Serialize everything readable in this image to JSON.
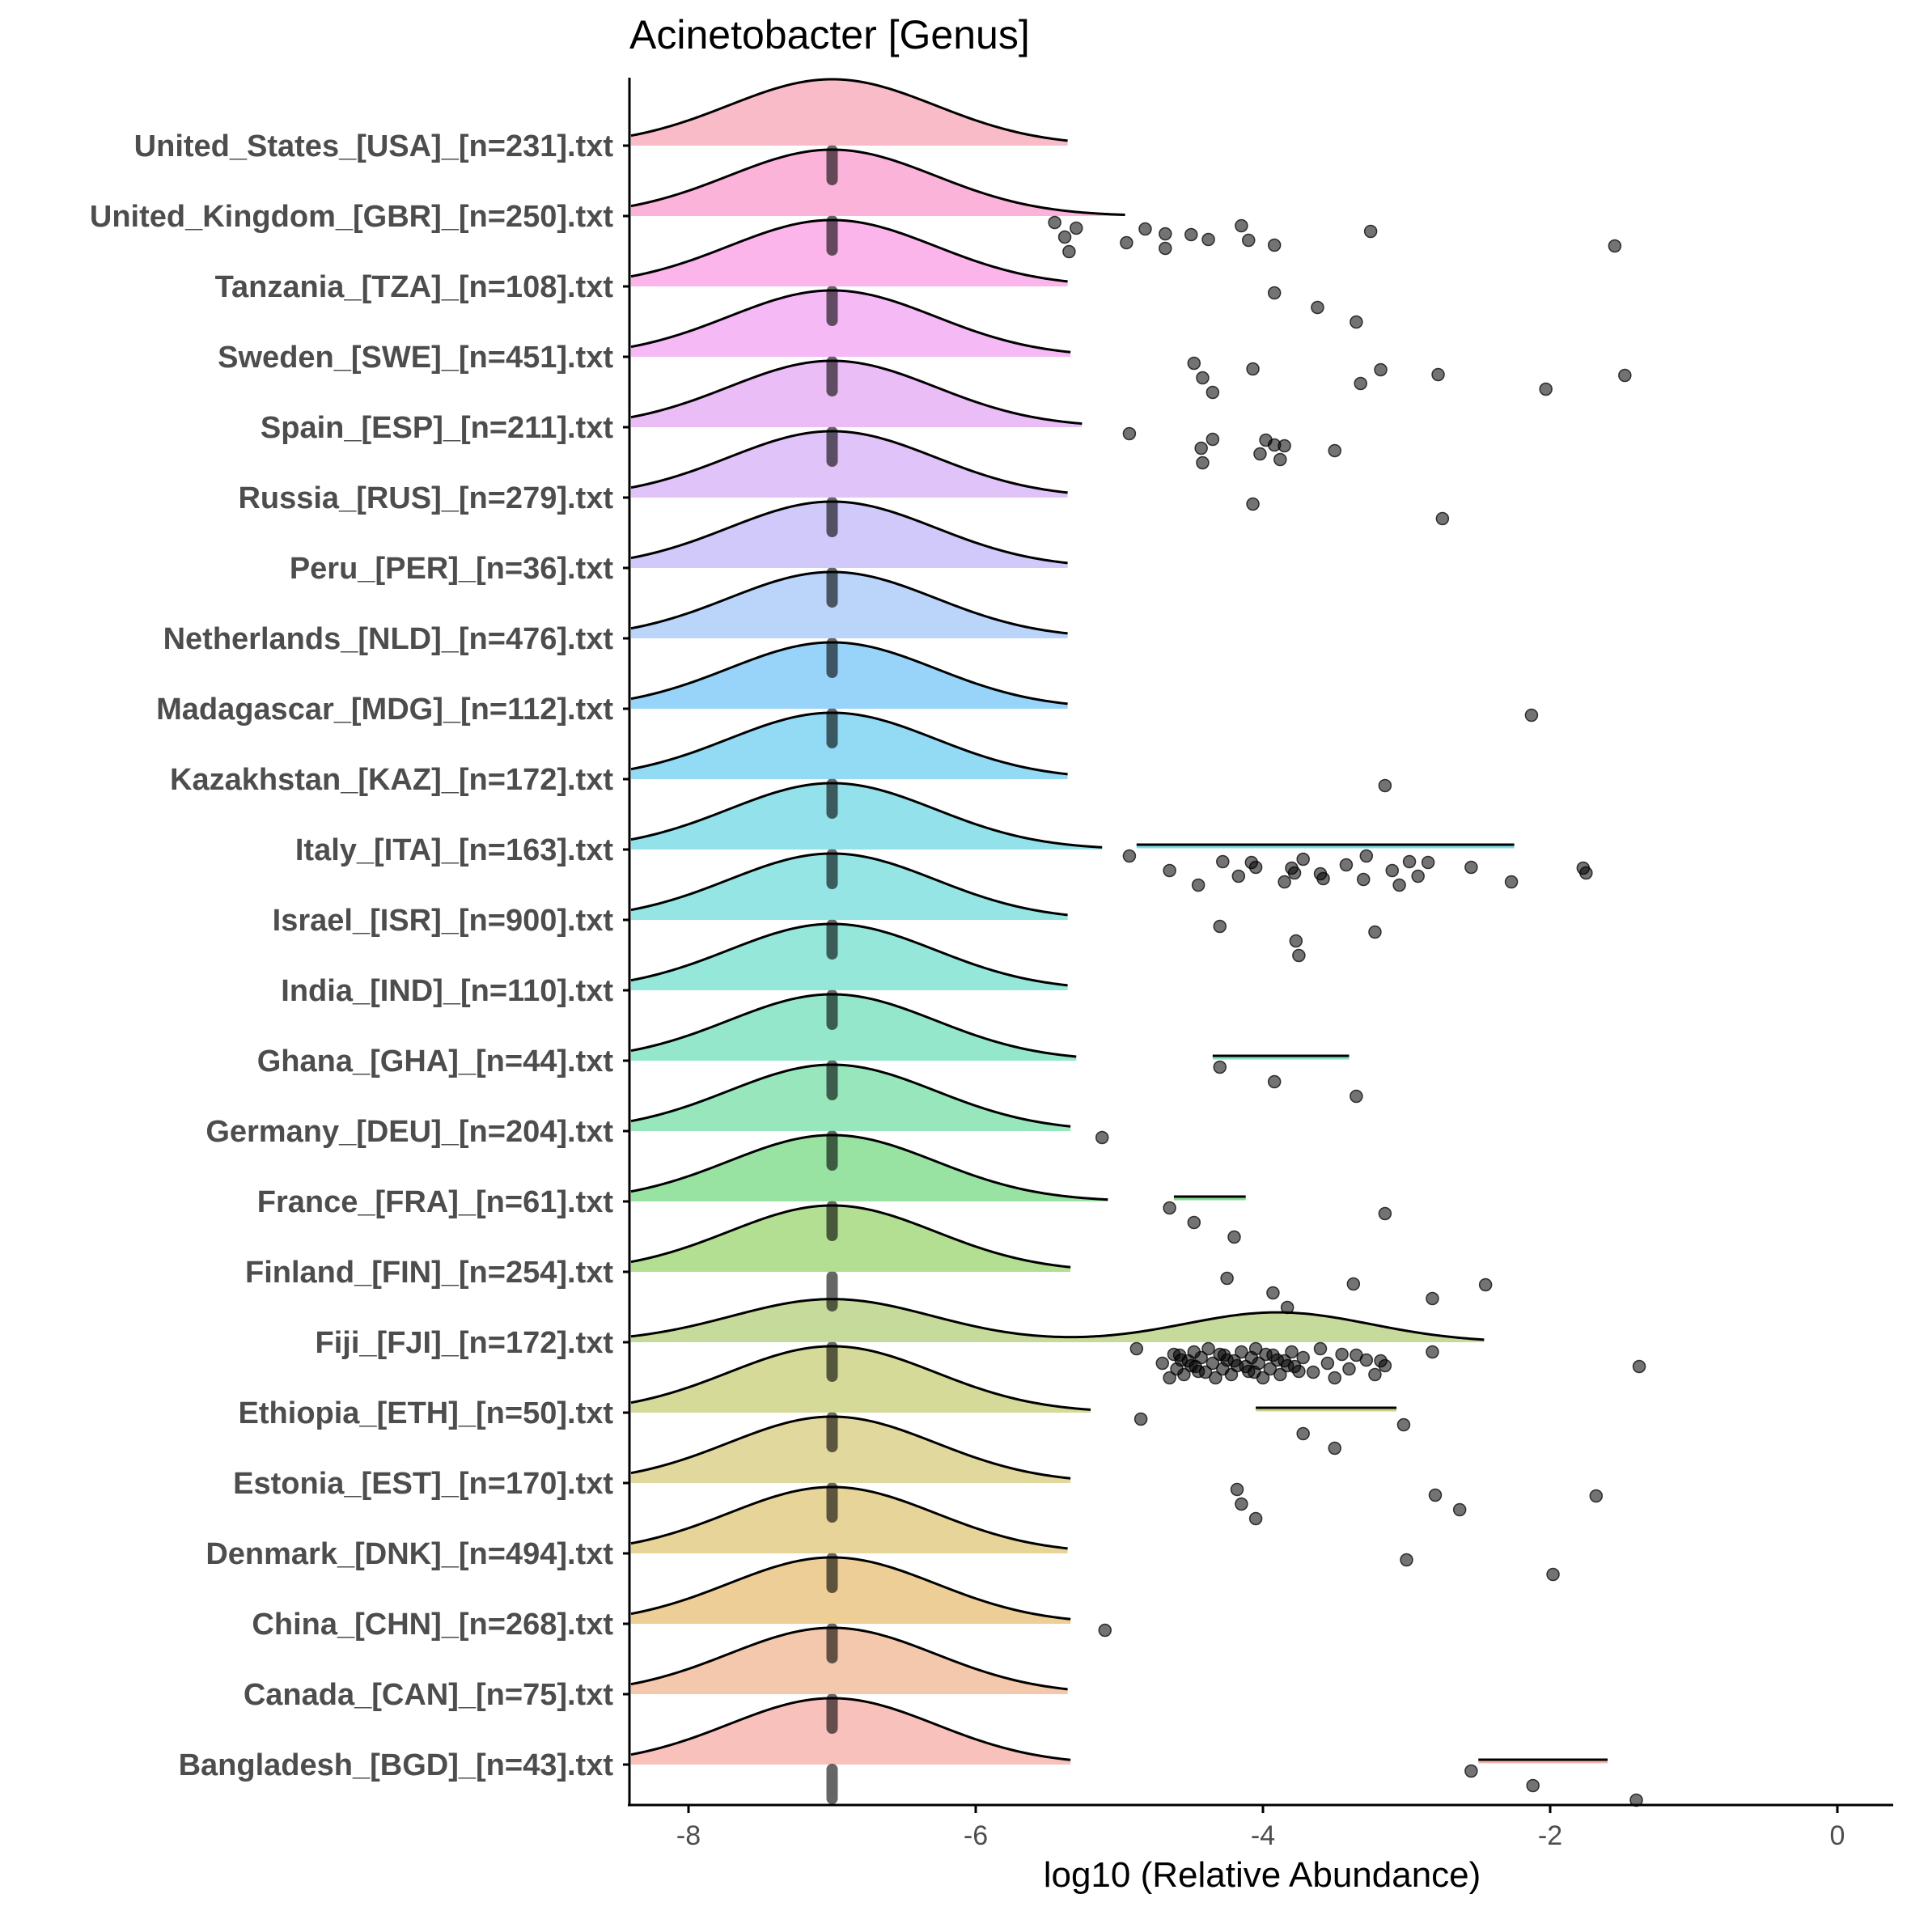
{
  "chart_data": {
    "type": "ridgeline",
    "title": "Acinetobacter [Genus]",
    "xlabel": "log10 (Relative Abundance)",
    "ylabel": "",
    "xlim": [
      -8.4,
      0.4
    ],
    "xticks": [
      -8,
      -6,
      -4,
      -2,
      0
    ],
    "xtick_labels": [
      "-8",
      "-6",
      "-4",
      "-2",
      "0"
    ],
    "grid": false,
    "legend": "none",
    "series": [
      {
        "name": "United_States_[USA]_[n=231].txt",
        "color": "#F8AFBE",
        "peak_x": -7.0,
        "median": null,
        "ridge_to": -5.35,
        "tail": null,
        "points": []
      },
      {
        "name": "United_Kingdom_[GBR]_[n=250].txt",
        "color": "#FBA6D4",
        "peak_x": -7.0,
        "median": -7.0,
        "ridge_to": -4.95,
        "tail": null,
        "points": [
          -5.45,
          -5.38,
          -5.35,
          -5.3,
          -4.95,
          -4.82,
          -4.68,
          -4.68,
          -4.5,
          -4.38,
          -4.15,
          -4.1,
          -3.92,
          -3.25,
          -1.55
        ]
      },
      {
        "name": "Tanzania_[TZA]_[n=108].txt",
        "color": "#FBA8E8",
        "peak_x": -7.0,
        "median": -7.0,
        "ridge_to": -5.35,
        "tail": null,
        "points": [
          -3.92,
          -3.62,
          -3.35
        ]
      },
      {
        "name": "Sweden_[SWE]_[n=451].txt",
        "color": "#F3ADF5",
        "peak_x": -7.0,
        "median": -7.0,
        "ridge_to": -5.33,
        "tail": null,
        "points": [
          -4.48,
          -4.42,
          -4.35,
          -4.07,
          -3.32,
          -3.18,
          -2.78,
          -2.03,
          -1.48
        ]
      },
      {
        "name": "Spain_[ESP]_[n=211].txt",
        "color": "#E7B1F6",
        "peak_x": -7.0,
        "median": -7.0,
        "ridge_to": -5.25,
        "tail": null,
        "points": [
          -4.93,
          -4.43,
          -4.42,
          -4.35,
          -4.02,
          -3.98,
          -3.92,
          -3.88,
          -3.85,
          -3.5
        ]
      },
      {
        "name": "Russia_[RUS]_[n=279].txt",
        "color": "#DAB8F8",
        "peak_x": -7.0,
        "median": -7.0,
        "ridge_to": -5.35,
        "tail": null,
        "points": [
          -4.07,
          -2.75
        ]
      },
      {
        "name": "Peru_[PER]_[n=36].txt",
        "color": "#C8C0F9",
        "peak_x": -7.0,
        "median": -7.0,
        "ridge_to": -5.35,
        "tail": null,
        "points": []
      },
      {
        "name": "Netherlands_[NLD]_[n=476].txt",
        "color": "#AECCF9",
        "peak_x": -7.0,
        "median": -7.0,
        "ridge_to": -5.35,
        "tail": null,
        "points": []
      },
      {
        "name": "Madagascar_[MDG]_[n=112].txt",
        "color": "#86CDF8",
        "peak_x": -7.0,
        "median": -7.0,
        "ridge_to": -5.35,
        "tail": null,
        "points": [
          -2.13
        ]
      },
      {
        "name": "Kazakhstan_[KAZ]_[n=172].txt",
        "color": "#80D5F2",
        "peak_x": -7.0,
        "median": -7.0,
        "ridge_to": -5.35,
        "tail": null,
        "points": [
          -3.15
        ]
      },
      {
        "name": "Italy_[ITA]_[n=163].txt",
        "color": "#80DDE8",
        "peak_x": -7.0,
        "median": -7.0,
        "ridge_to": -5.12,
        "tail": [
          -4.88,
          -2.25
        ],
        "points": [
          -4.93,
          -4.65,
          -4.45,
          -4.28,
          -4.17,
          -4.08,
          -4.05,
          -3.85,
          -3.8,
          -3.78,
          -3.72,
          -3.6,
          -3.58,
          -3.42,
          -3.3,
          -3.28,
          -3.1,
          -3.05,
          -2.98,
          -2.92,
          -2.85,
          -2.55,
          -2.27,
          -1.77,
          -1.75
        ]
      },
      {
        "name": "Israel_[ISR]_[n=900].txt",
        "color": "#82E1E0",
        "peak_x": -7.0,
        "median": -7.0,
        "ridge_to": -5.35,
        "tail": null,
        "points": [
          -4.3,
          -3.77,
          -3.75,
          -3.22
        ]
      },
      {
        "name": "India_[IND]_[n=110].txt",
        "color": "#82E3D2",
        "peak_x": -7.0,
        "median": -7.0,
        "ridge_to": -5.35,
        "tail": null,
        "points": []
      },
      {
        "name": "Ghana_[GHA]_[n=44].txt",
        "color": "#83E3C2",
        "peak_x": -7.0,
        "median": -7.0,
        "ridge_to": -5.3,
        "tail": [
          -4.35,
          -3.4
        ],
        "points": [
          -4.3,
          -3.92,
          -3.35
        ]
      },
      {
        "name": "Germany_[DEU]_[n=204].txt",
        "color": "#86E2B0",
        "peak_x": -7.0,
        "median": -7.0,
        "ridge_to": -5.33,
        "tail": null,
        "points": [
          -5.12
        ]
      },
      {
        "name": "France_[FRA]_[n=61].txt",
        "color": "#87DE92",
        "peak_x": -7.0,
        "median": -7.0,
        "ridge_to": -5.08,
        "tail": [
          -4.62,
          -4.12
        ],
        "points": [
          -4.65,
          -4.48,
          -4.2,
          -3.15
        ]
      },
      {
        "name": "Finland_[FIN]_[n=254].txt",
        "color": "#A4D97E",
        "peak_x": -7.0,
        "median": -7.0,
        "ridge_to": -5.33,
        "tail": null,
        "points": [
          -4.25,
          -3.93,
          -3.83,
          -3.37,
          -2.82,
          -2.45
        ]
      },
      {
        "name": "Fiji_[FJI]_[n=172].txt",
        "color": "#BCD58A",
        "peak_x": -7.0,
        "median": -7.0,
        "ridge_to": -2.45,
        "tail": null,
        "points": [
          -4.88,
          -4.7,
          -4.65,
          -4.62,
          -4.6,
          -4.58,
          -4.57,
          -4.55,
          -4.52,
          -4.5,
          -4.48,
          -4.47,
          -4.45,
          -4.43,
          -4.4,
          -4.38,
          -4.35,
          -4.33,
          -4.3,
          -4.28,
          -4.27,
          -4.25,
          -4.22,
          -4.2,
          -4.18,
          -4.15,
          -4.12,
          -4.1,
          -4.08,
          -4.06,
          -4.05,
          -4.03,
          -4.0,
          -3.98,
          -3.95,
          -3.93,
          -3.9,
          -3.88,
          -3.85,
          -3.83,
          -3.8,
          -3.78,
          -3.75,
          -3.72,
          -3.65,
          -3.6,
          -3.55,
          -3.5,
          -3.45,
          -3.4,
          -3.35,
          -3.28,
          -3.22,
          -3.18,
          -3.15,
          -2.82,
          -1.38
        ]
      },
      {
        "name": "Ethiopia_[ETH]_[n=50].txt",
        "color": "#CED487",
        "peak_x": -7.0,
        "median": -7.0,
        "ridge_to": -5.2,
        "tail": [
          -4.05,
          -3.07
        ],
        "points": [
          -4.85,
          -3.72,
          -3.5,
          -3.02
        ]
      },
      {
        "name": "Estonia_[EST]_[n=170].txt",
        "color": "#DCD18D",
        "peak_x": -7.0,
        "median": -7.0,
        "ridge_to": -5.33,
        "tail": null,
        "points": [
          -4.18,
          -4.15,
          -4.05,
          -2.8,
          -2.63,
          -1.68
        ]
      },
      {
        "name": "Denmark_[DNK]_[n=494].txt",
        "color": "#E3CC87",
        "peak_x": -7.0,
        "median": -7.0,
        "ridge_to": -5.35,
        "tail": null,
        "points": [
          -3.0,
          -1.98
        ]
      },
      {
        "name": "China_[CHN]_[n=268].txt",
        "color": "#EAC585",
        "peak_x": -7.0,
        "median": -7.0,
        "ridge_to": -5.33,
        "tail": null,
        "points": [
          -5.1
        ]
      },
      {
        "name": "Canada_[CAN]_[n=75].txt",
        "color": "#F2BE9D",
        "peak_x": -7.0,
        "median": -7.0,
        "ridge_to": -5.35,
        "tail": null,
        "points": []
      },
      {
        "name": "Bangladesh_[BGD]_[n=43].txt",
        "color": "#F8B6AF",
        "peak_x": -7.0,
        "median": -7.0,
        "ridge_to": -5.33,
        "tail": [
          -2.5,
          -1.6
        ],
        "points": [
          -2.55,
          -2.12,
          -1.4
        ]
      }
    ],
    "bottom_median": -7.0
  }
}
